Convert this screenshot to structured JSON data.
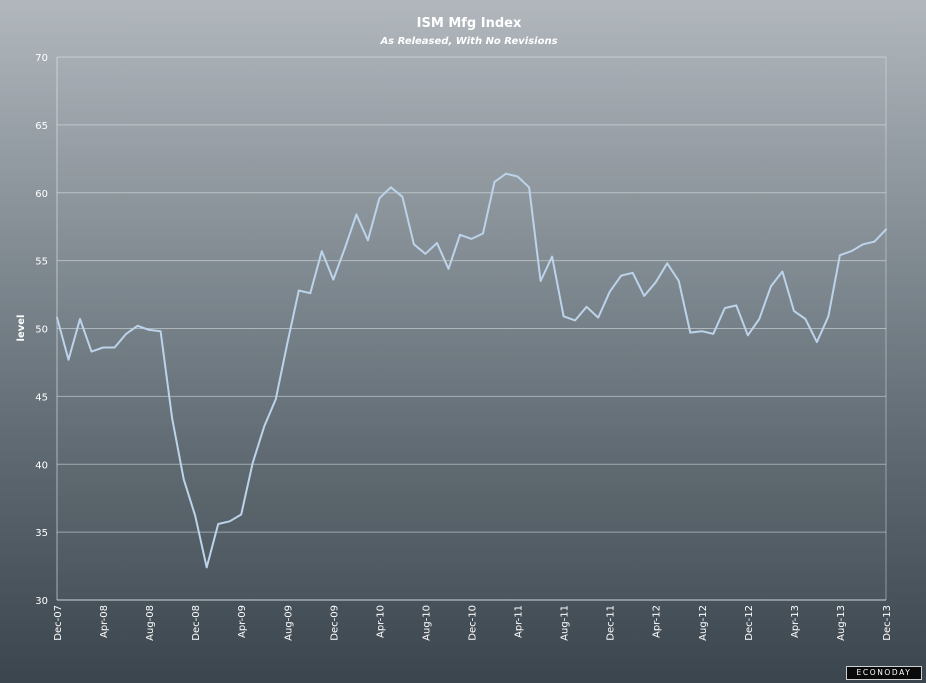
{
  "chart_data": {
    "type": "line",
    "title": "ISM Mfg Index",
    "subtitle": "As Released, With No Revisions",
    "ylabel": "level",
    "xlabel": "",
    "ylim": [
      30,
      70
    ],
    "yticks": [
      30,
      35,
      40,
      45,
      50,
      55,
      60,
      65,
      70
    ],
    "grid": true,
    "x_tick_labels": [
      "Dec-07",
      "Apr-08",
      "Aug-08",
      "Dec-08",
      "Apr-09",
      "Aug-09",
      "Dec-09",
      "Apr-10",
      "Aug-10",
      "Dec-10",
      "Apr-11",
      "Aug-11",
      "Dec-11",
      "Apr-12",
      "Aug-12",
      "Dec-12",
      "Apr-13",
      "Aug-13",
      "Dec-13"
    ],
    "series": [
      {
        "color": "#bcd3ea",
        "x": [
          "Dec-07",
          "Jan-08",
          "Feb-08",
          "Mar-08",
          "Apr-08",
          "May-08",
          "Jun-08",
          "Jul-08",
          "Aug-08",
          "Sep-08",
          "Oct-08",
          "Nov-08",
          "Dec-08",
          "Jan-09",
          "Feb-09",
          "Mar-09",
          "Apr-09",
          "May-09",
          "Jun-09",
          "Jul-09",
          "Aug-09",
          "Sep-09",
          "Oct-09",
          "Nov-09",
          "Dec-09",
          "Jan-10",
          "Feb-10",
          "Mar-10",
          "Apr-10",
          "May-10",
          "Jun-10",
          "Jul-10",
          "Aug-10",
          "Sep-10",
          "Oct-10",
          "Nov-10",
          "Dec-10",
          "Jan-11",
          "Feb-11",
          "Mar-11",
          "Apr-11",
          "May-11",
          "Jun-11",
          "Jul-11",
          "Aug-11",
          "Sep-11",
          "Oct-11",
          "Nov-11",
          "Dec-11",
          "Jan-12",
          "Feb-12",
          "Mar-12",
          "Apr-12",
          "May-12",
          "Jun-12",
          "Jul-12",
          "Aug-12",
          "Sep-12",
          "Oct-12",
          "Nov-12",
          "Dec-12",
          "Jan-13",
          "Feb-13",
          "Mar-13",
          "Apr-13",
          "May-13",
          "Jun-13",
          "Jul-13",
          "Aug-13",
          "Sep-13",
          "Oct-13",
          "Nov-13",
          "Dec-13"
        ],
        "values": [
          50.8,
          47.7,
          50.7,
          48.3,
          48.6,
          48.6,
          49.6,
          50.2,
          49.9,
          49.8,
          43.4,
          38.9,
          36.2,
          32.4,
          35.6,
          35.8,
          36.3,
          40.1,
          42.8,
          44.8,
          48.9,
          52.8,
          52.6,
          55.7,
          53.6,
          55.9,
          58.4,
          56.5,
          59.6,
          60.4,
          59.7,
          56.2,
          55.5,
          56.3,
          54.4,
          56.9,
          56.6,
          57.0,
          60.8,
          61.4,
          61.2,
          60.4,
          53.5,
          55.3,
          50.9,
          50.6,
          51.6,
          50.8,
          52.7,
          53.9,
          54.1,
          52.4,
          53.4,
          54.8,
          53.5,
          49.7,
          49.8,
          49.6,
          51.5,
          51.7,
          49.5,
          50.7,
          53.1,
          54.2,
          51.3,
          50.7,
          49.0,
          50.9,
          55.4,
          55.7,
          56.2,
          56.4,
          57.3
        ]
      }
    ]
  },
  "logo_text": "ECONODAY"
}
